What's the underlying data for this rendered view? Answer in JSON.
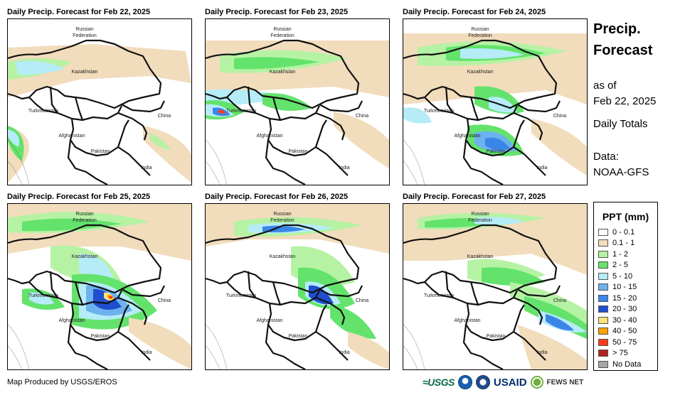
{
  "panels": [
    {
      "title": "Daily Precip. Forecast for Feb 22, 2025",
      "date": "Feb 22, 2025",
      "precip_focus": "light"
    },
    {
      "title": "Daily Precip. Forecast for Feb 23, 2025",
      "date": "Feb 23, 2025",
      "precip_focus": "west"
    },
    {
      "title": "Daily Precip. Forecast for Feb 24, 2025",
      "date": "Feb 24, 2025",
      "precip_focus": "afghanistan"
    },
    {
      "title": "Daily Precip. Forecast for Feb 25, 2025",
      "date": "Feb 25, 2025",
      "precip_focus": "heavy"
    },
    {
      "title": "Daily Precip. Forecast for Feb 26, 2025",
      "date": "Feb 26, 2025",
      "precip_focus": "east"
    },
    {
      "title": "Daily Precip. Forecast for Feb 27, 2025",
      "date": "Feb 27, 2025",
      "precip_focus": "northeast"
    }
  ],
  "map_labels": {
    "russia": "Russian\nFederation",
    "kazakhstan": "Kazakhstan",
    "turkmenistan": "Turkmenistan",
    "afghanistan": "Afghanistan",
    "pakistan": "Pakistan",
    "china": "China",
    "india": "India"
  },
  "info": {
    "title_line1": "Precip.",
    "title_line2": "Forecast",
    "as_of_label": "as of",
    "as_of_date": "Feb 22, 2025",
    "totals": "Daily Totals",
    "data_label": "Data:",
    "data_source": "NOAA-GFS"
  },
  "legend": {
    "title": "PPT (mm)",
    "items": [
      {
        "label": "0 - 0.1",
        "color": "#ffffff"
      },
      {
        "label": "0.1 - 1",
        "color": "#f1dcbc"
      },
      {
        "label": "1 - 2",
        "color": "#b6f2a4"
      },
      {
        "label": "2 - 5",
        "color": "#63e36c"
      },
      {
        "label": "5 - 10",
        "color": "#b5ecf7"
      },
      {
        "label": "10 - 15",
        "color": "#6cb2ee"
      },
      {
        "label": "15 - 20",
        "color": "#3a86e8"
      },
      {
        "label": "20 - 30",
        "color": "#1f4fcf"
      },
      {
        "label": "30 - 40",
        "color": "#ffe27a"
      },
      {
        "label": "40 - 50",
        "color": "#ffa200"
      },
      {
        "label": "50 - 75",
        "color": "#ff3b1a"
      },
      {
        "label": "> 75",
        "color": "#b0211c"
      },
      {
        "label": "No Data",
        "color": "#a6a6a6"
      }
    ]
  },
  "footer": {
    "credit": "Map Produced by USGS/EROS",
    "logos": {
      "usgs": "≈USGS",
      "usaid": "USAID",
      "fews": "FEWS NET"
    }
  }
}
